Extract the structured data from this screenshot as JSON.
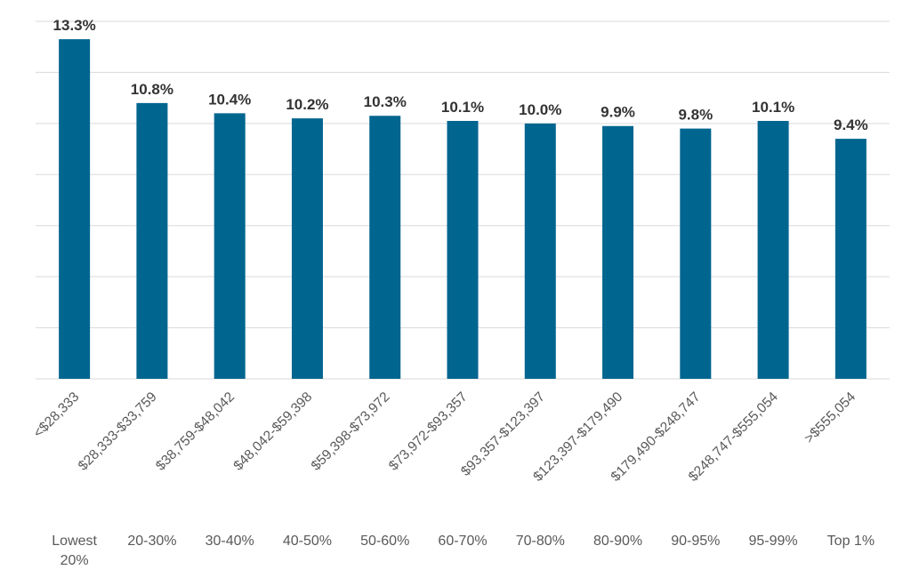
{
  "chart_data": {
    "type": "bar",
    "categories": [
      "<$28,333",
      "$28,333-$33,759",
      "$38,759-$48,042",
      "$48,042-$59,398",
      "$59,398-$73,972",
      "$73,972-$93,357",
      "$93,357-$123,397",
      "$123,397-$179,490",
      "$179,490-$248,747",
      "$248,747-$555,054",
      ">$555,054"
    ],
    "groups": [
      [
        "Lowest",
        "20%"
      ],
      [
        "20-30%"
      ],
      [
        "30-40%"
      ],
      [
        "40-50%"
      ],
      [
        "50-60%"
      ],
      [
        "60-70%"
      ],
      [
        "70-80%"
      ],
      [
        "80-90%"
      ],
      [
        "90-95%"
      ],
      [
        "95-99%"
      ],
      [
        "Top 1%"
      ]
    ],
    "values": [
      13.3,
      10.8,
      10.4,
      10.2,
      10.3,
      10.1,
      10.0,
      9.9,
      9.8,
      10.1,
      9.4
    ],
    "value_labels": [
      "13.3%",
      "10.8%",
      "10.4%",
      "10.2%",
      "10.3%",
      "10.1%",
      "10.0%",
      "9.9%",
      "9.8%",
      "10.1%",
      "9.4%"
    ],
    "ylim": [
      0,
      14
    ],
    "grid_step": 2,
    "grid": true,
    "bar_color": "#00658f",
    "title": "",
    "xlabel": "",
    "ylabel": ""
  }
}
